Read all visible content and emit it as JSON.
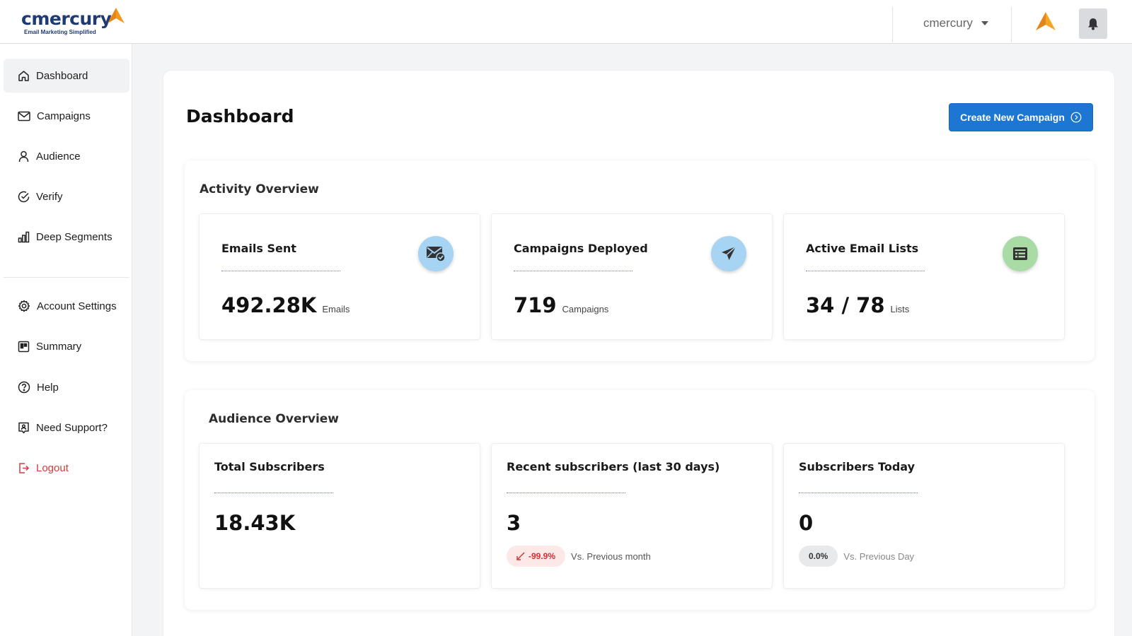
{
  "brand": {
    "name": "cmercury",
    "tagline": "Email Marketing Simplified",
    "accent_color": "#f29a1f"
  },
  "header": {
    "user_name": "cmercury",
    "notification_icon": "bell-icon"
  },
  "sidebar": {
    "items": [
      {
        "label": "Dashboard",
        "icon": "home-icon",
        "active": true
      },
      {
        "label": "Campaigns",
        "icon": "mail-icon"
      },
      {
        "label": "Audience",
        "icon": "user-icon"
      },
      {
        "label": "Verify",
        "icon": "check-circle-icon"
      },
      {
        "label": "Deep Segments",
        "icon": "bar-chart-icon"
      },
      {
        "label": "Account Settings",
        "icon": "gear-icon"
      },
      {
        "label": "Summary",
        "icon": "summary-icon"
      },
      {
        "label": "Help",
        "icon": "help-icon"
      },
      {
        "label": "Need Support?",
        "icon": "support-icon"
      },
      {
        "label": "Logout",
        "icon": "logout-icon",
        "color": "#d93a3a"
      }
    ]
  },
  "main": {
    "title": "Dashboard",
    "create_button": "Create New Campaign",
    "activity": {
      "title": "Activity Overview",
      "cards": [
        {
          "label": "Emails Sent",
          "value": "492.28K",
          "unit": "Emails",
          "icon": "mail-check-icon",
          "icon_bg": "#a6d4f2"
        },
        {
          "label": "Campaigns Deployed",
          "value": "719",
          "unit": "Campaigns",
          "icon": "paper-plane-icon",
          "icon_bg": "#a6d4f2"
        },
        {
          "label": "Active Email Lists",
          "value": "34 / 78",
          "unit": "Lists",
          "icon": "list-icon",
          "icon_bg": "#a9dba5"
        }
      ]
    },
    "audience": {
      "title": "Audience Overview",
      "cards": [
        {
          "label": "Total Subscribers",
          "value": "18.43K"
        },
        {
          "label": "Recent subscribers (last 30 days)",
          "value": "3",
          "trend": "-99.9%",
          "comparison": "Vs. Previous month"
        },
        {
          "label": "Subscribers Today",
          "value": "0",
          "trend": "0.0%",
          "comparison": "Vs. Previous Day"
        }
      ]
    }
  }
}
